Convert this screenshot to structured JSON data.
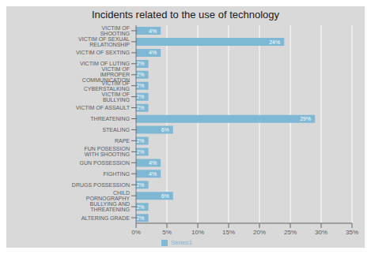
{
  "chart_data": {
    "type": "bar",
    "title": "Incidents related to the use of technology",
    "orientation": "horizontal",
    "categories": [
      "VICTIM OF SHOOTING",
      "VICTIM OF SEXUAL RELATIONSHIP",
      "VICTIM OF SEXTING",
      "VICTIM OF LUTING",
      "VICTIM OF IMPROPER COMMUNICATION",
      "VICTIM OF CYBERSTALKING",
      "VICTIM OF BULLYING",
      "VICTIM OF ASSAULT",
      "THREATENING",
      "STEALING",
      "RAPE",
      "FUN POSESSION WITH SHOOTING",
      "GUN POSSESSION",
      "FIGHTING",
      "DRUGS POSSESSION",
      "CHILD PORNOGRAPHY",
      "BULLYING AND THREATENING",
      "ALTERING GRADE"
    ],
    "series": [
      {
        "name": "Series1",
        "color": "#7eb8d4",
        "values": [
          4,
          24,
          4,
          2,
          2,
          2,
          2,
          2,
          29,
          6,
          2,
          2,
          4,
          4,
          2,
          6,
          2,
          2
        ],
        "value_labels": [
          "4%",
          "24%",
          "4%",
          "2%",
          "2%",
          "2%",
          "2%",
          "2%",
          "29%",
          "6%",
          "2%",
          "2%",
          "4%",
          "4%",
          "2%",
          "6%",
          "2%",
          "2%"
        ]
      }
    ],
    "xlim": [
      0,
      35
    ],
    "xticks": [
      {
        "value": 0,
        "label": "0%"
      },
      {
        "value": 5,
        "label": "5%"
      },
      {
        "value": 10,
        "label": "10%"
      },
      {
        "value": 15,
        "label": "15%"
      },
      {
        "value": 20,
        "label": "20%"
      },
      {
        "value": 25,
        "label": "25%"
      },
      {
        "value": 30,
        "label": "30%"
      },
      {
        "value": 35,
        "label": "35%"
      }
    ],
    "grid": true,
    "data_labels": true
  }
}
